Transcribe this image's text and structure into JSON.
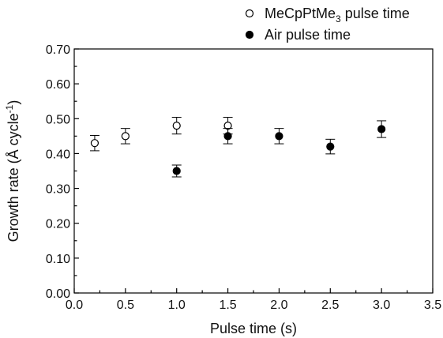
{
  "chart_data": {
    "type": "scatter",
    "xlabel": "Pulse time (s)",
    "ylabel": {
      "main": "Growth rate (Å cycle",
      "superscript": "-1",
      "close": ")"
    },
    "xlim": [
      0.0,
      3.5
    ],
    "ylim": [
      0.0,
      0.7
    ],
    "x_ticks": [
      "0.0",
      "0.5",
      "1.0",
      "1.5",
      "2.0",
      "2.5",
      "3.0",
      "3.5"
    ],
    "y_ticks": [
      "0.00",
      "0.10",
      "0.20",
      "0.30",
      "0.40",
      "0.50",
      "0.60",
      "0.70"
    ],
    "grid": false,
    "legend_position": "top-right, above plot",
    "series": [
      {
        "name": {
          "main": "MeCpPtMe",
          "subscript": "3",
          "suffix": " pulse time"
        },
        "marker": "open-circle",
        "x": [
          0.2,
          0.5,
          1.0,
          1.5
        ],
        "y": [
          0.43,
          0.45,
          0.48,
          0.48
        ],
        "yerr": [
          0.022,
          0.022,
          0.024,
          0.024
        ]
      },
      {
        "name": {
          "main": "Air pulse time"
        },
        "marker": "filled-circle",
        "x": [
          1.0,
          1.5,
          2.0,
          2.5,
          3.0
        ],
        "y": [
          0.35,
          0.45,
          0.45,
          0.42,
          0.47
        ],
        "yerr": [
          0.017,
          0.022,
          0.022,
          0.021,
          0.024
        ]
      }
    ]
  }
}
